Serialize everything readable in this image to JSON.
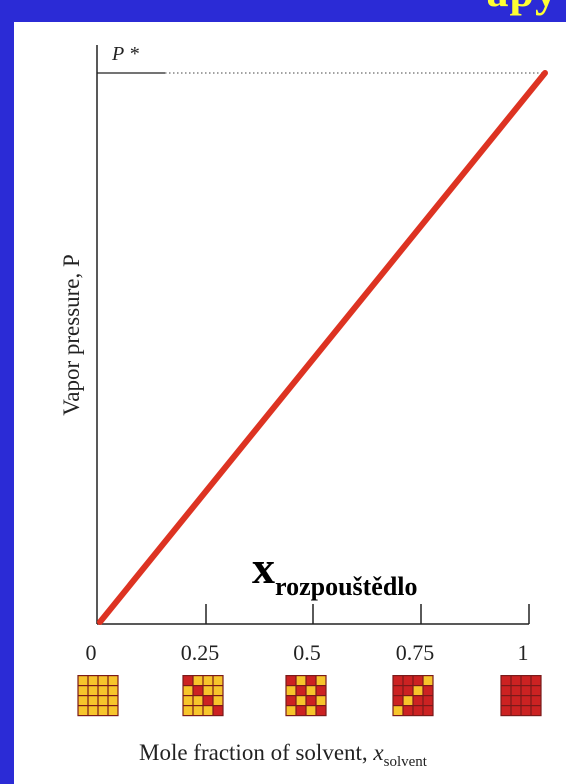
{
  "header": {
    "title_fragment": "apy"
  },
  "chart_data": {
    "type": "line",
    "title": "",
    "xlabel": "Mole fraction of solvent, x",
    "xlabel_subscript": "solvent",
    "ylabel": "Vapor pressure, P",
    "overlay_label": "x",
    "overlay_label_subscript": "rozpouštědlo",
    "p_star_label": "P *",
    "xlim": [
      0,
      1
    ],
    "ylim": [
      0,
      1
    ],
    "x_ticks": [
      "0",
      "0.25",
      "0.5",
      "0.75",
      "1"
    ],
    "series": [
      {
        "x": [
          0,
          1
        ],
        "y": [
          0,
          1
        ],
        "color": "#dd3322"
      }
    ],
    "composition_grids": [
      {
        "x": "0",
        "solvent_cells": 0
      },
      {
        "x": "0.25",
        "solvent_cells": 4
      },
      {
        "x": "0.5",
        "solvent_cells": 8
      },
      {
        "x": "0.75",
        "solvent_cells": 12
      },
      {
        "x": "1",
        "solvent_cells": 16
      }
    ],
    "colors": {
      "solvent": "#cc2222",
      "solute": "#f7c52b",
      "line": "#dd3322",
      "grid_border": "#7a1a1a"
    }
  }
}
